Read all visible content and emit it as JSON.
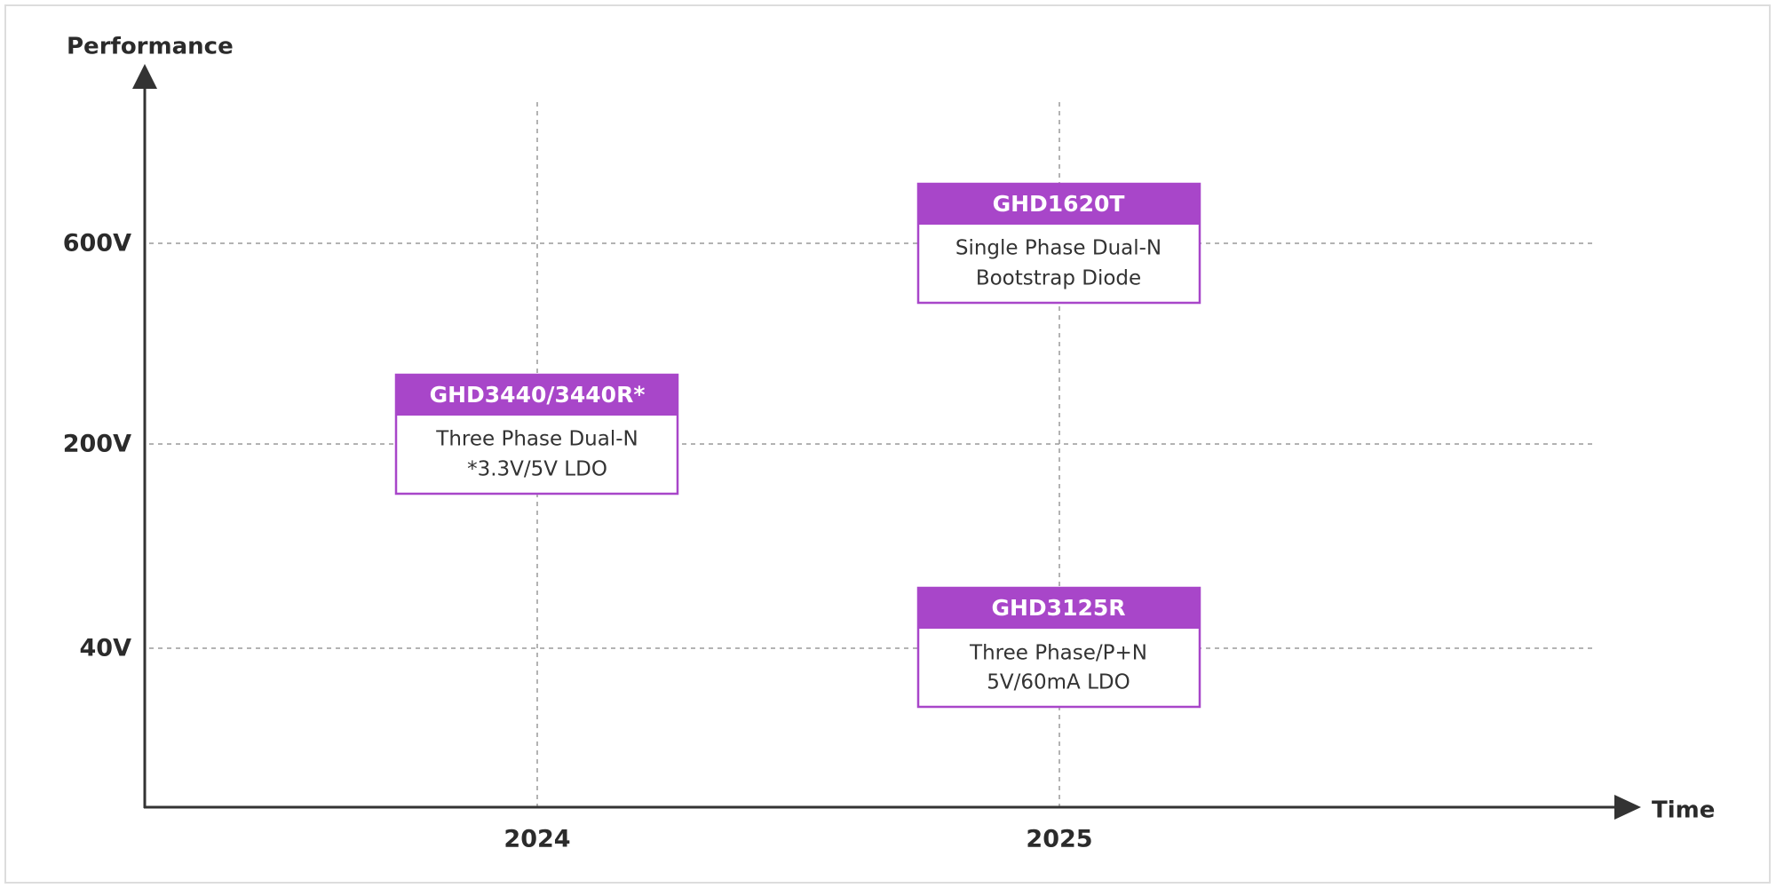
{
  "axes": {
    "y_label": "Performance",
    "x_label": "Time",
    "y_levels": [
      "600V",
      "200V",
      "40V"
    ],
    "x_levels": [
      "2024",
      "2025"
    ]
  },
  "products": [
    {
      "name": "GHD1620T",
      "lines": [
        "Single Phase Dual-N",
        "Bootstrap Diode"
      ]
    },
    {
      "name": "GHD3440/3440R*",
      "lines": [
        "Three Phase Dual-N",
        "*3.3V/5V LDO"
      ]
    },
    {
      "name": "GHD3125R",
      "lines": [
        "Three Phase/P+N",
        "5V/60mA LDO"
      ]
    }
  ]
}
